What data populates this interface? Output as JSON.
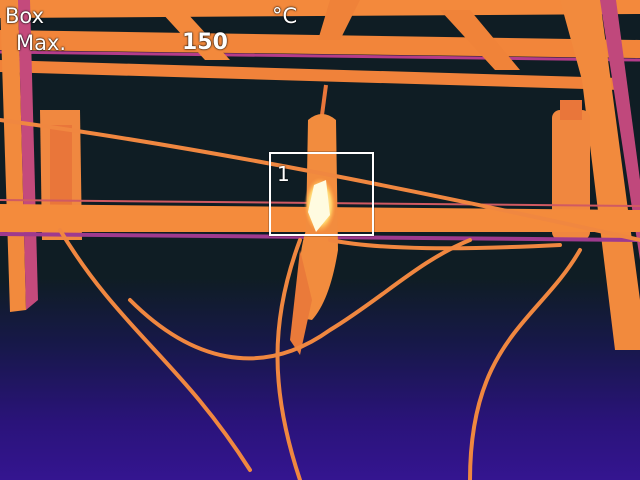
{
  "overlay": {
    "mode": "Box",
    "unit": "°C",
    "max_label": "Max.",
    "max_value": "150"
  },
  "measure_box": {
    "id": "1"
  },
  "palette": {
    "background": "#0f1c24",
    "hot_structure": "#f58a3c",
    "warm_edge": "#b33a8c",
    "hotspot": "#fffbe0",
    "cold_bottom": "#341590"
  }
}
